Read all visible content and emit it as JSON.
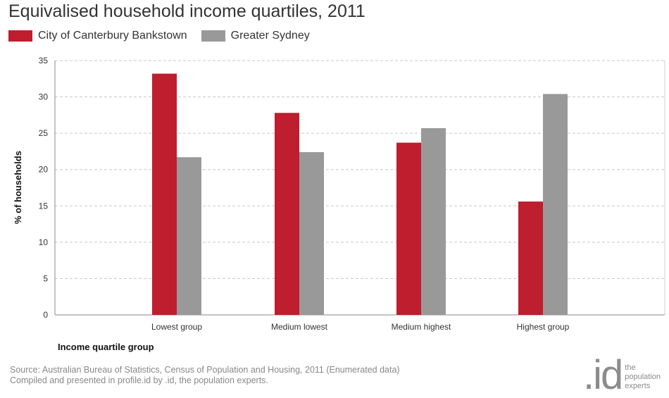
{
  "chart_data": {
    "type": "bar",
    "title": "Equivalised household income quartiles, 2011",
    "categories": [
      "Lowest group",
      "Medium lowest",
      "Medium highest",
      "Highest group"
    ],
    "series": [
      {
        "name": "City of Canterbury Bankstown",
        "color": "#be1e2d",
        "values": [
          33.2,
          27.8,
          23.7,
          15.6
        ]
      },
      {
        "name": "Greater Sydney",
        "color": "#999999",
        "values": [
          21.7,
          22.4,
          25.7,
          30.4
        ]
      }
    ],
    "xlabel": "Income quartile group",
    "ylabel": "% of households",
    "ylim": [
      0,
      35
    ],
    "yticks": [
      0,
      5,
      10,
      15,
      20,
      25,
      30,
      35
    ],
    "grid": true,
    "legend_position": "top-left"
  },
  "footer": {
    "source_line1": "Source: Australian Bureau of Statistics, Census of Population and Housing, 2011 (Enumerated data)",
    "source_line2": "Compiled and presented in profile.id by .id, the population experts."
  },
  "brand": {
    "logo_text": ".id",
    "tag_line1": "the",
    "tag_line2": "population",
    "tag_line3": "experts"
  }
}
